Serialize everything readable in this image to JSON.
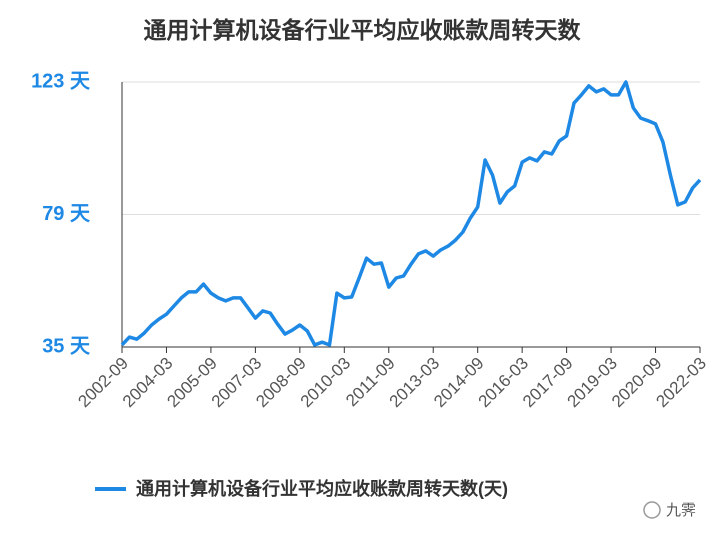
{
  "chart_data": {
    "type": "line",
    "title": "通用计算机设备行业平均应收账款周转天数",
    "categories": [
      "2002-09",
      null,
      null,
      null,
      null,
      null,
      "2004-03",
      null,
      null,
      null,
      null,
      null,
      "2005-09",
      null,
      null,
      null,
      null,
      null,
      "2007-03",
      null,
      null,
      null,
      null,
      null,
      "2008-09",
      null,
      null,
      null,
      null,
      null,
      "2010-03",
      null,
      null,
      null,
      null,
      null,
      "2011-09",
      null,
      null,
      null,
      null,
      null,
      "2013-03",
      null,
      null,
      null,
      null,
      null,
      "2014-09",
      null,
      null,
      null,
      null,
      null,
      "2016-03",
      null,
      null,
      null,
      null,
      null,
      "2017-09",
      null,
      null,
      null,
      null,
      null,
      "2019-03",
      null,
      null,
      null,
      null,
      null,
      "2020-09",
      null,
      null,
      null,
      null,
      null,
      "2022-03"
    ],
    "series": [
      {
        "name": "通用计算机设备行业平均应收账款周转天数(天)",
        "color": "#1e88e5",
        "values": [
          35.7,
          38.3,
          37.6,
          39.6,
          42.3,
          44.3,
          45.9,
          48.6,
          51.3,
          53.3,
          53.3,
          55.9,
          52.9,
          51.3,
          50.3,
          51.3,
          51.3,
          48,
          44.6,
          47,
          46.3,
          42.6,
          39.3,
          40.6,
          42.3,
          40.3,
          35.7,
          36.6,
          35.7,
          52.9,
          51.3,
          51.6,
          57.9,
          64.5,
          62.5,
          62.9,
          54.9,
          57.9,
          58.6,
          62.5,
          65.9,
          66.9,
          65.2,
          67.2,
          68.5,
          70.5,
          73.2,
          77.8,
          81.5,
          97.1,
          92.1,
          82.8,
          86.5,
          88.5,
          96.4,
          97.8,
          96.8,
          99.8,
          99.1,
          103.4,
          105.1,
          116,
          118.7,
          121.7,
          119.7,
          120.7,
          118.7,
          118.7,
          123,
          114.4,
          111,
          110.1,
          109.1,
          103.1,
          92.1,
          82.2,
          83.2,
          87.8,
          90.5
        ]
      }
    ],
    "ylim": [
      35,
      123
    ],
    "yticks": [
      {
        "value": 35,
        "label": "35 天"
      },
      {
        "value": 79,
        "label": "79 天"
      },
      {
        "value": 123,
        "label": "123 天"
      }
    ],
    "grid": true,
    "legend": "bottom",
    "watermark": "九霁"
  }
}
